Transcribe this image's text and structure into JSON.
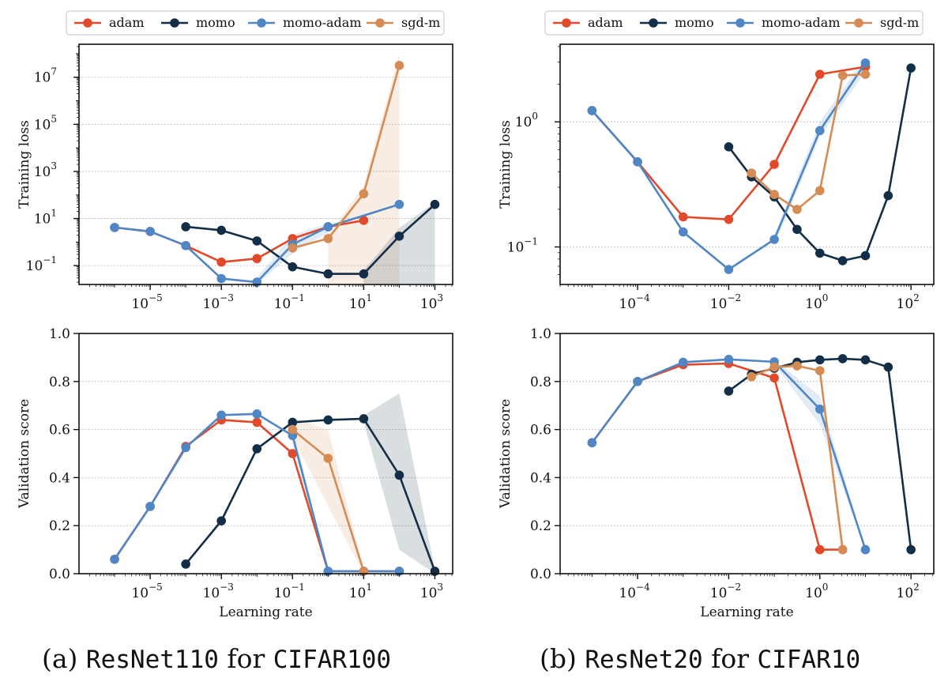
{
  "colors": {
    "adam": "#e04a2a",
    "momo": "#132f47",
    "momo-adam": "#5086c4",
    "sgd-m": "#d48c54"
  },
  "captions": [
    {
      "prefix": "(a) ",
      "model": "ResNet110",
      "mid": " for ",
      "dataset": "CIFAR100"
    },
    {
      "prefix": "(b) ",
      "model": "ResNet20",
      "mid": " for ",
      "dataset": "CIFAR10"
    }
  ],
  "chart_data": [
    {
      "id": "a-train",
      "type": "line",
      "yscale": "log",
      "xscale": "log",
      "ylabel": "Training loss",
      "xlabel": "",
      "xlim_log10": [
        -7,
        3.5
      ],
      "ylim_log10": [
        -1.8,
        8.4
      ],
      "xticks": [
        {
          "v": -5,
          "label": "10",
          "exp": "−5"
        },
        {
          "v": -3,
          "label": "10",
          "exp": "−3"
        },
        {
          "v": -1,
          "label": "10",
          "exp": "−1"
        },
        {
          "v": 1,
          "label": "10",
          "exp": "1"
        },
        {
          "v": 3,
          "label": "10",
          "exp": "3"
        }
      ],
      "yticks": [
        {
          "v": -1,
          "label": "10",
          "exp": "−1"
        },
        {
          "v": 1,
          "label": "10",
          "exp": "1"
        },
        {
          "v": 3,
          "label": "10",
          "exp": "3"
        },
        {
          "v": 5,
          "label": "10",
          "exp": "5"
        },
        {
          "v": 7,
          "label": "10",
          "exp": "7"
        }
      ],
      "legend": [
        "adam",
        "momo",
        "momo-adam",
        "sgd-m"
      ],
      "series": [
        {
          "name": "adam",
          "x": [
            -6,
            -5,
            -4,
            -3,
            -2,
            -1,
            0,
            1
          ],
          "y": [
            0.62,
            0.45,
            -0.15,
            -0.85,
            -0.7,
            0.15,
            0.65,
            0.92
          ]
        },
        {
          "name": "momo",
          "x": [
            -4,
            -3,
            -2,
            -1,
            0,
            1,
            2,
            3
          ],
          "y": [
            0.65,
            0.5,
            0.05,
            -1.05,
            -1.35,
            -1.35,
            0.25,
            1.6
          ]
        },
        {
          "name": "momo-adam",
          "x": [
            -6,
            -5,
            -4,
            -3,
            -2,
            -1,
            0,
            2
          ],
          "y": [
            0.62,
            0.45,
            -0.15,
            -1.55,
            -1.7,
            -0.1,
            0.65,
            1.6
          ]
        },
        {
          "name": "sgd-m",
          "x": [
            -1,
            0,
            1,
            2
          ],
          "y": [
            -0.25,
            0.15,
            2.05,
            7.5
          ]
        }
      ],
      "bands": [
        {
          "name": "sgd-m",
          "x": [
            0,
            1,
            2
          ],
          "lo": [
            -1.8,
            -1.8,
            -1.8
          ],
          "hi": [
            0.3,
            2.4,
            8.0
          ]
        },
        {
          "name": "momo",
          "x": [
            1,
            2,
            3
          ],
          "lo": [
            -1.8,
            -1.8,
            -1.8
          ],
          "hi": [
            -1.2,
            0.6,
            1.7
          ]
        },
        {
          "name": "momo-adam",
          "x": [
            -2,
            -1,
            0
          ],
          "lo": [
            -1.8,
            -0.5,
            0.4
          ],
          "hi": [
            -1.5,
            0.3,
            0.8
          ]
        }
      ]
    },
    {
      "id": "a-val",
      "type": "line",
      "yscale": "linear",
      "xscale": "log",
      "ylabel": "Validation score",
      "xlabel": "Learning rate",
      "xlim_log10": [
        -7,
        3.5
      ],
      "ylim": [
        0,
        1
      ],
      "xticks": [
        {
          "v": -5,
          "label": "10",
          "exp": "−5"
        },
        {
          "v": -3,
          "label": "10",
          "exp": "−3"
        },
        {
          "v": -1,
          "label": "10",
          "exp": "−1"
        },
        {
          "v": 1,
          "label": "10",
          "exp": "1"
        },
        {
          "v": 3,
          "label": "10",
          "exp": "3"
        }
      ],
      "yticks": [
        {
          "v": 0,
          "label": "0.0"
        },
        {
          "v": 0.2,
          "label": "0.2"
        },
        {
          "v": 0.4,
          "label": "0.4"
        },
        {
          "v": 0.6,
          "label": "0.6"
        },
        {
          "v": 0.8,
          "label": "0.8"
        },
        {
          "v": 1.0,
          "label": "1.0"
        }
      ],
      "series": [
        {
          "name": "adam",
          "x": [
            -6,
            -5,
            -4,
            -3,
            -2,
            -1,
            0,
            1,
            2
          ],
          "y": [
            0.06,
            0.28,
            0.53,
            0.64,
            0.63,
            0.5,
            0.01,
            0.01,
            0.01
          ]
        },
        {
          "name": "momo",
          "x": [
            -4,
            -3,
            -2,
            -1,
            0,
            1,
            2,
            3
          ],
          "y": [
            0.04,
            0.22,
            0.52,
            0.63,
            0.64,
            0.645,
            0.41,
            0.01
          ]
        },
        {
          "name": "momo-adam",
          "x": [
            -6,
            -5,
            -4,
            -3,
            -2,
            -1,
            0,
            1,
            2
          ],
          "y": [
            0.06,
            0.28,
            0.525,
            0.66,
            0.665,
            0.575,
            0.01,
            0.01,
            0.01
          ]
        },
        {
          "name": "sgd-m",
          "x": [
            -1,
            0,
            1
          ],
          "y": [
            0.6,
            0.48,
            0.01
          ]
        }
      ],
      "bands": [
        {
          "name": "momo",
          "x": [
            1,
            2,
            3
          ],
          "lo": [
            0.63,
            0.1,
            0.0
          ],
          "hi": [
            0.66,
            0.75,
            0.02
          ]
        },
        {
          "name": "sgd-m",
          "x": [
            -1,
            0,
            1
          ],
          "lo": [
            0.57,
            0.28,
            0.0
          ],
          "hi": [
            0.65,
            0.6,
            0.02
          ]
        },
        {
          "name": "momo-adam",
          "x": [
            -1,
            0
          ],
          "lo": [
            0.54,
            0.0
          ],
          "hi": [
            0.61,
            0.02
          ]
        }
      ]
    },
    {
      "id": "b-train",
      "type": "line",
      "yscale": "log",
      "xscale": "log",
      "ylabel": "Training loss",
      "xlabel": "",
      "xlim_log10": [
        -5.7,
        2.5
      ],
      "ylim_log10": [
        -1.3,
        0.62
      ],
      "xticks": [
        {
          "v": -4,
          "label": "10",
          "exp": "−4"
        },
        {
          "v": -2,
          "label": "10",
          "exp": "−2"
        },
        {
          "v": 0,
          "label": "10",
          "exp": "0"
        },
        {
          "v": 2,
          "label": "10",
          "exp": "2"
        }
      ],
      "yticks": [
        {
          "v": -1,
          "label": "10",
          "exp": "−1"
        },
        {
          "v": 0,
          "label": "10",
          "exp": "0"
        }
      ],
      "legend": [
        "adam",
        "momo",
        "momo-adam",
        "sgd-m"
      ],
      "series": [
        {
          "name": "adam",
          "x": [
            -5,
            -4,
            -3,
            -2,
            -1,
            0,
            1
          ],
          "y": [
            0.09,
            -0.32,
            -0.76,
            -0.78,
            -0.34,
            0.38,
            0.44
          ]
        },
        {
          "name": "momo",
          "x": [
            -2,
            -1.5,
            -1,
            -0.5,
            0,
            0.5,
            1,
            1.5,
            2
          ],
          "y": [
            -0.2,
            -0.44,
            -0.6,
            -0.86,
            -1.05,
            -1.11,
            -1.07,
            -0.59,
            0.43
          ]
        },
        {
          "name": "momo-adam",
          "x": [
            -5,
            -4,
            -3,
            -2,
            -1,
            0,
            1
          ],
          "y": [
            0.09,
            -0.32,
            -0.88,
            -1.18,
            -0.94,
            -0.07,
            0.47
          ]
        },
        {
          "name": "sgd-m",
          "x": [
            -1.5,
            -1,
            -0.5,
            0,
            0.5,
            1
          ],
          "y": [
            -0.41,
            -0.58,
            -0.7,
            -0.55,
            0.37,
            0.38
          ]
        }
      ],
      "bands": [
        {
          "name": "momo-adam",
          "x": [
            -1,
            0,
            1
          ],
          "lo": [
            -0.98,
            -0.12,
            0.4
          ],
          "hi": [
            -0.9,
            0.0,
            0.52
          ]
        }
      ]
    },
    {
      "id": "b-val",
      "type": "line",
      "yscale": "linear",
      "xscale": "log",
      "ylabel": "Validation score",
      "xlabel": "Learning rate",
      "xlim_log10": [
        -5.7,
        2.5
      ],
      "ylim": [
        0,
        1
      ],
      "xticks": [
        {
          "v": -4,
          "label": "10",
          "exp": "−4"
        },
        {
          "v": -2,
          "label": "10",
          "exp": "−2"
        },
        {
          "v": 0,
          "label": "10",
          "exp": "0"
        },
        {
          "v": 2,
          "label": "10",
          "exp": "2"
        }
      ],
      "yticks": [
        {
          "v": 0,
          "label": "0.0"
        },
        {
          "v": 0.2,
          "label": "0.2"
        },
        {
          "v": 0.4,
          "label": "0.4"
        },
        {
          "v": 0.6,
          "label": "0.6"
        },
        {
          "v": 0.8,
          "label": "0.8"
        },
        {
          "v": 1.0,
          "label": "1.0"
        }
      ],
      "series": [
        {
          "name": "adam",
          "x": [
            -5,
            -4,
            -3,
            -2,
            -1,
            0,
            0.5
          ],
          "y": [
            0.545,
            0.8,
            0.87,
            0.875,
            0.815,
            0.1,
            0.1
          ]
        },
        {
          "name": "momo",
          "x": [
            -2,
            -1.5,
            -1,
            -0.5,
            0,
            0.5,
            1,
            1.5,
            2
          ],
          "y": [
            0.76,
            0.83,
            0.855,
            0.88,
            0.89,
            0.895,
            0.89,
            0.86,
            0.1
          ]
        },
        {
          "name": "momo-adam",
          "x": [
            -5,
            -4,
            -3,
            -2,
            -1,
            0,
            1
          ],
          "y": [
            0.545,
            0.8,
            0.88,
            0.892,
            0.882,
            0.685,
            0.1
          ]
        },
        {
          "name": "sgd-m",
          "x": [
            -1.5,
            -1,
            -0.5,
            0,
            0.5
          ],
          "y": [
            0.82,
            0.86,
            0.865,
            0.845,
            0.1
          ]
        }
      ],
      "bands": [
        {
          "name": "momo-adam",
          "x": [
            -1,
            0,
            1
          ],
          "lo": [
            0.87,
            0.62,
            0.1
          ],
          "hi": [
            0.89,
            0.74,
            0.1
          ]
        }
      ]
    }
  ]
}
